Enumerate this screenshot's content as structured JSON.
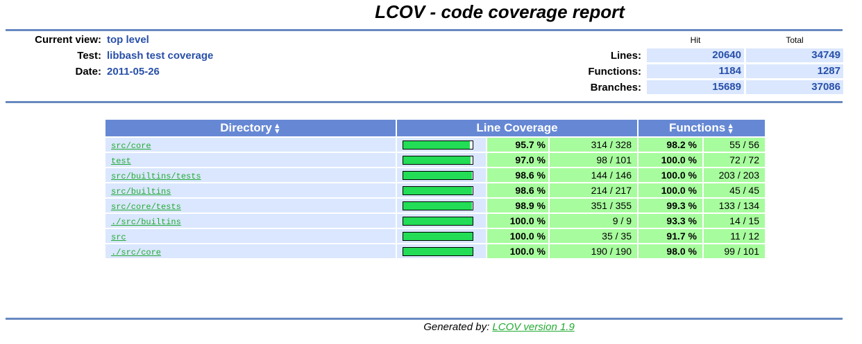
{
  "title": "LCOV - code coverage report",
  "header": {
    "current_view_label": "Current view:",
    "current_view_value": "top level",
    "test_label": "Test:",
    "test_value": "libbash test coverage",
    "date_label": "Date:",
    "date_value": "2011-05-26"
  },
  "summary": {
    "hit_label": "Hit",
    "total_label": "Total",
    "lines_label": "Lines:",
    "lines_hit": "20640",
    "lines_total": "34749",
    "functions_label": "Functions:",
    "functions_hit": "1184",
    "functions_total": "1287",
    "branches_label": "Branches:",
    "branches_hit": "15689",
    "branches_total": "37086"
  },
  "table": {
    "col_directory": "Directory",
    "col_line_coverage": "Line Coverage",
    "col_functions": "Functions",
    "rows": [
      {
        "dir": "src/core",
        "line_pct": "95.7 %",
        "line_frac": 0.957,
        "lines": "314 / 328",
        "func_pct": "98.2 %",
        "funcs": "55 / 56"
      },
      {
        "dir": "test",
        "line_pct": "97.0 %",
        "line_frac": 0.97,
        "lines": "98 / 101",
        "func_pct": "100.0 %",
        "funcs": "72 / 72"
      },
      {
        "dir": "src/builtins/tests",
        "line_pct": "98.6 %",
        "line_frac": 0.986,
        "lines": "144 / 146",
        "func_pct": "100.0 %",
        "funcs": "203 / 203"
      },
      {
        "dir": "src/builtins",
        "line_pct": "98.6 %",
        "line_frac": 0.986,
        "lines": "214 / 217",
        "func_pct": "100.0 %",
        "funcs": "45 / 45"
      },
      {
        "dir": "src/core/tests",
        "line_pct": "98.9 %",
        "line_frac": 0.989,
        "lines": "351 / 355",
        "func_pct": "99.3 %",
        "funcs": "133 / 134"
      },
      {
        "dir": "./src/builtins",
        "line_pct": "100.0 %",
        "line_frac": 1.0,
        "lines": "9 / 9",
        "func_pct": "93.3 %",
        "funcs": "14 / 15"
      },
      {
        "dir": "src",
        "line_pct": "100.0 %",
        "line_frac": 1.0,
        "lines": "35 / 35",
        "func_pct": "91.7 %",
        "funcs": "11 / 12"
      },
      {
        "dir": "./src/core",
        "line_pct": "100.0 %",
        "line_frac": 1.0,
        "lines": "190 / 190",
        "func_pct": "98.0 %",
        "funcs": "99 / 101"
      }
    ]
  },
  "footer": {
    "generated_by": "Generated by:",
    "lcov_link": "LCOV version 1.9"
  },
  "colors": {
    "rule": "#6688c0",
    "header_bg": "#6688d4",
    "light_blue": "#dae7fe",
    "green_cell": "#a7fc9d",
    "bar_fill": "#22dd55"
  }
}
